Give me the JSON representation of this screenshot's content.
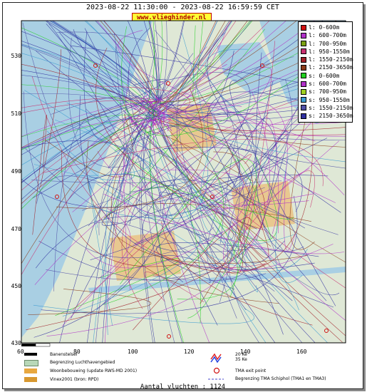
{
  "header": {
    "title": "2023-08-22 11:30:00 - 2023-08-22 16:59:59 CET",
    "brand": "www.vlieghinder.nl"
  },
  "map": {
    "x_range": [
      80,
      175
    ],
    "y_range": [
      430,
      537
    ],
    "x_ticks": [
      "80",
      "100",
      "120",
      "140",
      "160"
    ],
    "y_ticks": [
      "530",
      "510",
      "490",
      "470",
      "450",
      "430"
    ],
    "scale_label": "60"
  },
  "legend": {
    "items": [
      {
        "label": "l: 0-600m",
        "color": "#d01010"
      },
      {
        "label": "l: 600-700m",
        "color": "#b030c8"
      },
      {
        "label": "l: 700-950m",
        "color": "#7aa012"
      },
      {
        "label": "l: 950-1550m",
        "color": "#c83070"
      },
      {
        "label": "l: 1550-2150m",
        "color": "#a02028"
      },
      {
        "label": "l: 2150-3650m",
        "color": "#8a3a18"
      },
      {
        "label": "s: 0-600m",
        "color": "#20d020"
      },
      {
        "label": "s: 600-700m",
        "color": "#b030c8"
      },
      {
        "label": "s: 700-950m",
        "color": "#a0d020"
      },
      {
        "label": "s: 950-1550m",
        "color": "#3a9ad0"
      },
      {
        "label": "s: 1550-2150m",
        "color": "#5050a8"
      },
      {
        "label": "s: 2150-3650m",
        "color": "#3030a0"
      }
    ]
  },
  "key": {
    "runway": "Banenstelsel",
    "airport_boundary": "Begrenzing Luchthavengebied",
    "housing": "Woonbebouwing (update RWS-MD 2001)",
    "vinex": "Vinex2001 (bron: RPD)",
    "noise_20": "20 Ke",
    "noise_35": "35 Ke",
    "tma_exit": "TMA exit point",
    "tma_boundary": "Begrenzing TMA Schiphol  (TMA1 en TMA3)"
  },
  "footer": {
    "count": "Aantal vluchten : 1124"
  },
  "colors": {
    "land": "#dfe8d6",
    "water": "#a9cfe3",
    "housing": "#e8a840",
    "boundary_fill": "#b8d8b8"
  }
}
